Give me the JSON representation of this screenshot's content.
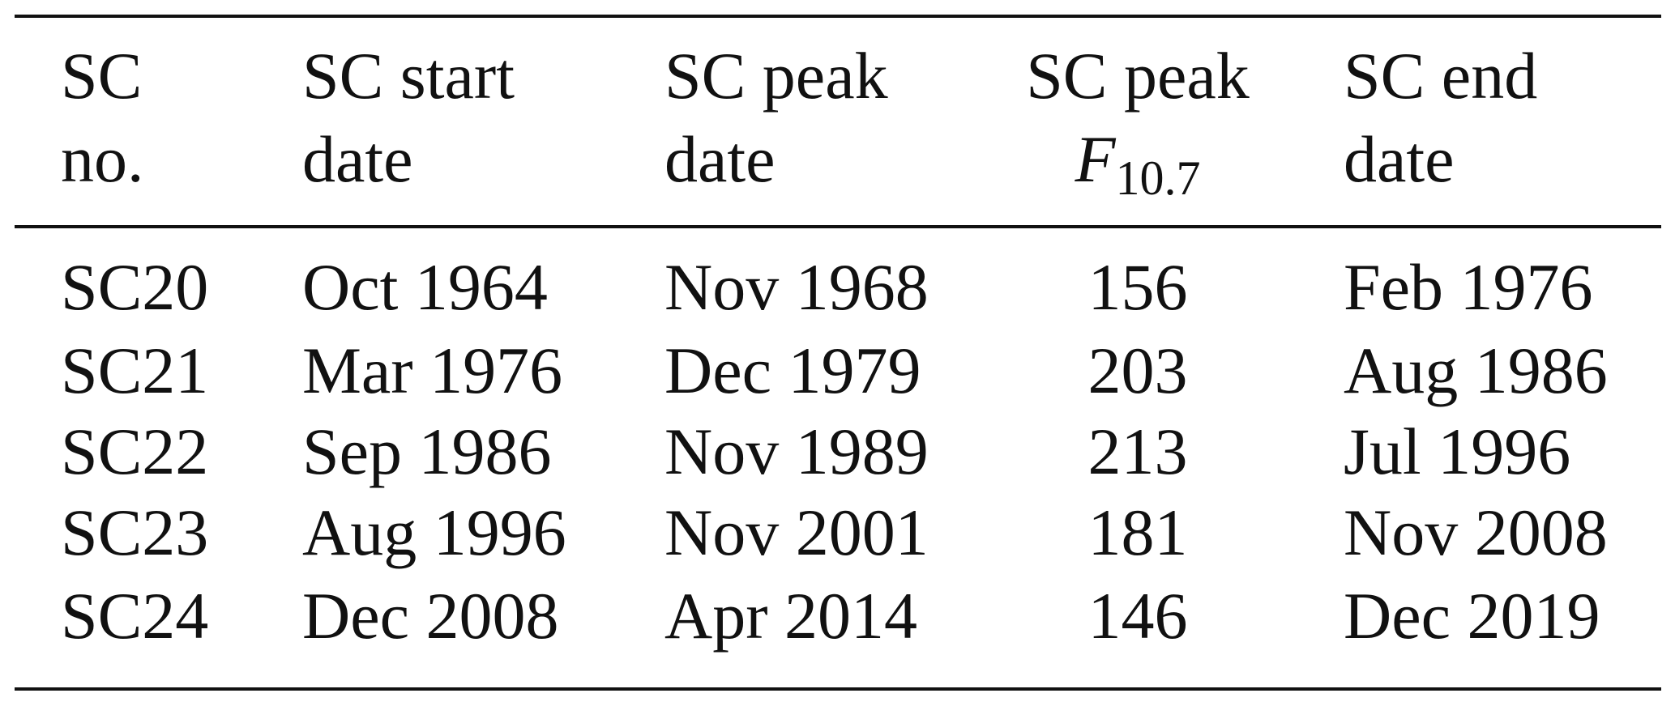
{
  "table": {
    "headers": [
      [
        "SC",
        "no."
      ],
      [
        "SC start",
        "date"
      ],
      [
        "SC peak",
        "date"
      ],
      [
        "SC peak",
        {
          "main": "F",
          "sub": "10.7"
        }
      ],
      [
        "SC end",
        "date"
      ]
    ],
    "rows": [
      [
        "SC20",
        "Oct 1964",
        "Nov 1968",
        156,
        "Feb 1976"
      ],
      [
        "SC21",
        "Mar 1976",
        "Dec 1979",
        203,
        "Aug 1986"
      ],
      [
        "SC22",
        "Sep 1986",
        "Nov 1989",
        213,
        "Jul 1996"
      ],
      [
        "SC23",
        "Aug 1996",
        "Nov 2001",
        181,
        "Nov 2008"
      ],
      [
        "SC24",
        "Dec 2008",
        "Apr 2014",
        146,
        "Dec 2019"
      ]
    ]
  }
}
